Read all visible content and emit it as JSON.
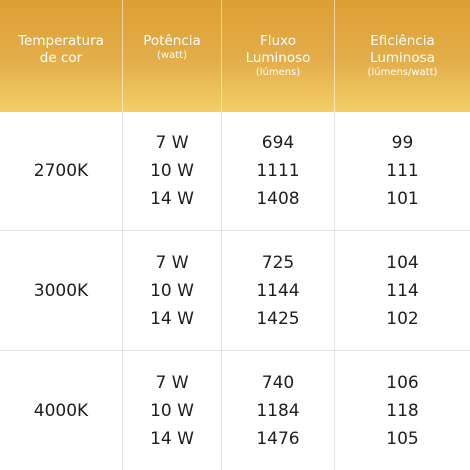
{
  "header": {
    "columns": [
      {
        "title": "Temperatura\nde cor",
        "sub": ""
      },
      {
        "title": "Potência",
        "sub": "(watt)"
      },
      {
        "title": "Fluxo\nLuminoso",
        "sub": "(lúmens)"
      },
      {
        "title": "Eficiência\nLuminosa",
        "sub": "(lúmens/watt)"
      }
    ]
  },
  "rows": [
    {
      "temp": "2700K",
      "power": [
        "7 W",
        "10 W",
        "14 W"
      ],
      "flux": [
        "694",
        "1111",
        "1408"
      ],
      "eff": [
        "99",
        "111",
        "101"
      ]
    },
    {
      "temp": "3000K",
      "power": [
        "7 W",
        "10 W",
        "14 W"
      ],
      "flux": [
        "725",
        "1144",
        "1425"
      ],
      "eff": [
        "104",
        "114",
        "102"
      ]
    },
    {
      "temp": "4000K",
      "power": [
        "7 W",
        "10 W",
        "14 W"
      ],
      "flux": [
        "740",
        "1184",
        "1476"
      ],
      "eff": [
        "106",
        "118",
        "105"
      ]
    }
  ],
  "colors": {
    "header_top": "#dd9f33",
    "header_bottom": "#f2cf66",
    "text": "#1e1e1e",
    "divider": "#e4e4e4"
  }
}
